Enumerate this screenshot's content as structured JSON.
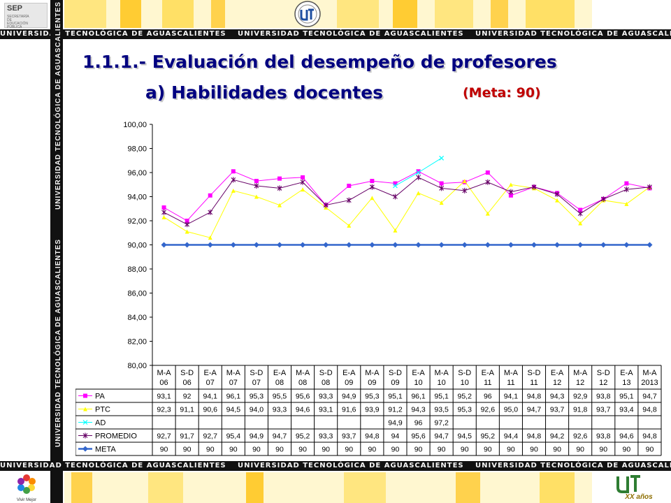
{
  "header": {
    "sep_label": "SEP",
    "sep_subtitle": "SECRETARÍA DE EDUCACIÓN PÚBLICA",
    "band_text": "UNIVERSIDAD TECNOLÓGICA DE AGUASCALIENTES",
    "vertical_text": "UNIVERSIDAD TECNOLÓGICA DE AGUASCALIENTES"
  },
  "slide": {
    "title": "1.1.1.- Evaluación del desempeño de profesores",
    "subtitle": "a) Habilidades docentes",
    "goal": "(Meta: 90)"
  },
  "footer": {
    "left_logo_text": "Vivir Mejor",
    "right_logo_text": "XX años"
  },
  "colors": {
    "PA": "#ff00ff",
    "PTC": "#ffff00",
    "AD": "#00ffff",
    "PROMEDIO": "#660066",
    "META": "#3366cc",
    "title": "#000080",
    "goal": "#c00000"
  },
  "chart_data": {
    "type": "line",
    "title": "",
    "xlabel": "",
    "ylabel": "",
    "ylim": [
      80,
      100
    ],
    "yticks": [
      "80,00",
      "82,00",
      "84,00",
      "86,00",
      "88,00",
      "90,00",
      "92,00",
      "94,00",
      "96,00",
      "98,00",
      "100,00"
    ],
    "grid": false,
    "legend": "table below chart",
    "categories": [
      [
        "M-A",
        "06"
      ],
      [
        "S-D",
        "06"
      ],
      [
        "E-A",
        "07"
      ],
      [
        "M-A",
        "07"
      ],
      [
        "S-D",
        "07"
      ],
      [
        "E-A",
        "08"
      ],
      [
        "M-A",
        "08"
      ],
      [
        "S-D",
        "08"
      ],
      [
        "E-A",
        "09"
      ],
      [
        "M-A",
        "09"
      ],
      [
        "S-D",
        "09"
      ],
      [
        "E-A",
        "10"
      ],
      [
        "M-A",
        "10"
      ],
      [
        "S-D",
        "10"
      ],
      [
        "E-A",
        "11"
      ],
      [
        "M-A",
        "11"
      ],
      [
        "S-D",
        "11"
      ],
      [
        "E-A",
        "12"
      ],
      [
        "M-A",
        "12"
      ],
      [
        "S-D",
        "12"
      ],
      [
        "E-A",
        "13"
      ],
      [
        "M-A",
        "2013"
      ]
    ],
    "series": [
      {
        "name": "PA",
        "marker": "square",
        "values": [
          93.1,
          92,
          94.1,
          96.1,
          95.3,
          95.5,
          95.6,
          93.3,
          94.9,
          95.3,
          95.1,
          96.1,
          95.1,
          95.2,
          96,
          94.1,
          94.8,
          94.3,
          92.9,
          93.8,
          95.1,
          94.7
        ],
        "labels": [
          "93,1",
          "92",
          "94,1",
          "96,1",
          "95,3",
          "95,5",
          "95,6",
          "93,3",
          "94,9",
          "95,3",
          "95,1",
          "96,1",
          "95,1",
          "95,2",
          "96",
          "94,1",
          "94,8",
          "94,3",
          "92,9",
          "93,8",
          "95,1",
          "94,7"
        ]
      },
      {
        "name": "PTC",
        "marker": "triangle",
        "values": [
          92.3,
          91.1,
          90.6,
          94.5,
          94.0,
          93.3,
          94.6,
          93.1,
          91.6,
          93.9,
          91.2,
          94.3,
          93.5,
          95.3,
          92.6,
          95.0,
          94.7,
          93.7,
          91.8,
          93.7,
          93.4,
          94.8
        ],
        "labels": [
          "92,3",
          "91,1",
          "90,6",
          "94,5",
          "94,0",
          "93,3",
          "94,6",
          "93,1",
          "91,6",
          "93,9",
          "91,2",
          "94,3",
          "93,5",
          "95,3",
          "92,6",
          "95,0",
          "94,7",
          "93,7",
          "91,8",
          "93,7",
          "93,4",
          "94,8"
        ]
      },
      {
        "name": "AD",
        "marker": "x",
        "values": [
          null,
          null,
          null,
          null,
          null,
          null,
          null,
          null,
          null,
          null,
          94.9,
          96,
          97.2,
          null,
          null,
          null,
          null,
          null,
          null,
          null,
          null,
          null
        ],
        "labels": [
          "",
          "",
          "",
          "",
          "",
          "",
          "",
          "",
          "",
          "",
          "94,9",
          "96",
          "97,2",
          "",
          "",
          "",
          "",
          "",
          "",
          "",
          "",
          ""
        ]
      },
      {
        "name": "PROMEDIO",
        "marker": "star",
        "values": [
          92.7,
          91.7,
          92.7,
          95.4,
          94.9,
          94.7,
          95.2,
          93.3,
          93.7,
          94.8,
          94,
          95.6,
          94.7,
          94.5,
          95.2,
          94.4,
          94.8,
          94.2,
          92.6,
          93.8,
          94.6,
          94.8
        ],
        "labels": [
          "92,7",
          "91,7",
          "92,7",
          "95,4",
          "94,9",
          "94,7",
          "95,2",
          "93,3",
          "93,7",
          "94,8",
          "94",
          "95,6",
          "94,7",
          "94,5",
          "95,2",
          "94,4",
          "94,8",
          "94,2",
          "92,6",
          "93,8",
          "94,6",
          "94,8"
        ]
      },
      {
        "name": "META",
        "marker": "diamond",
        "values": [
          90,
          90,
          90,
          90,
          90,
          90,
          90,
          90,
          90,
          90,
          90,
          90,
          90,
          90,
          90,
          90,
          90,
          90,
          90,
          90,
          90,
          90
        ],
        "labels": [
          "90",
          "90",
          "90",
          "90",
          "90",
          "90",
          "90",
          "90",
          "90",
          "90",
          "90",
          "90",
          "90",
          "90",
          "90",
          "90",
          "90",
          "90",
          "90",
          "90",
          "90",
          "90"
        ]
      }
    ]
  }
}
